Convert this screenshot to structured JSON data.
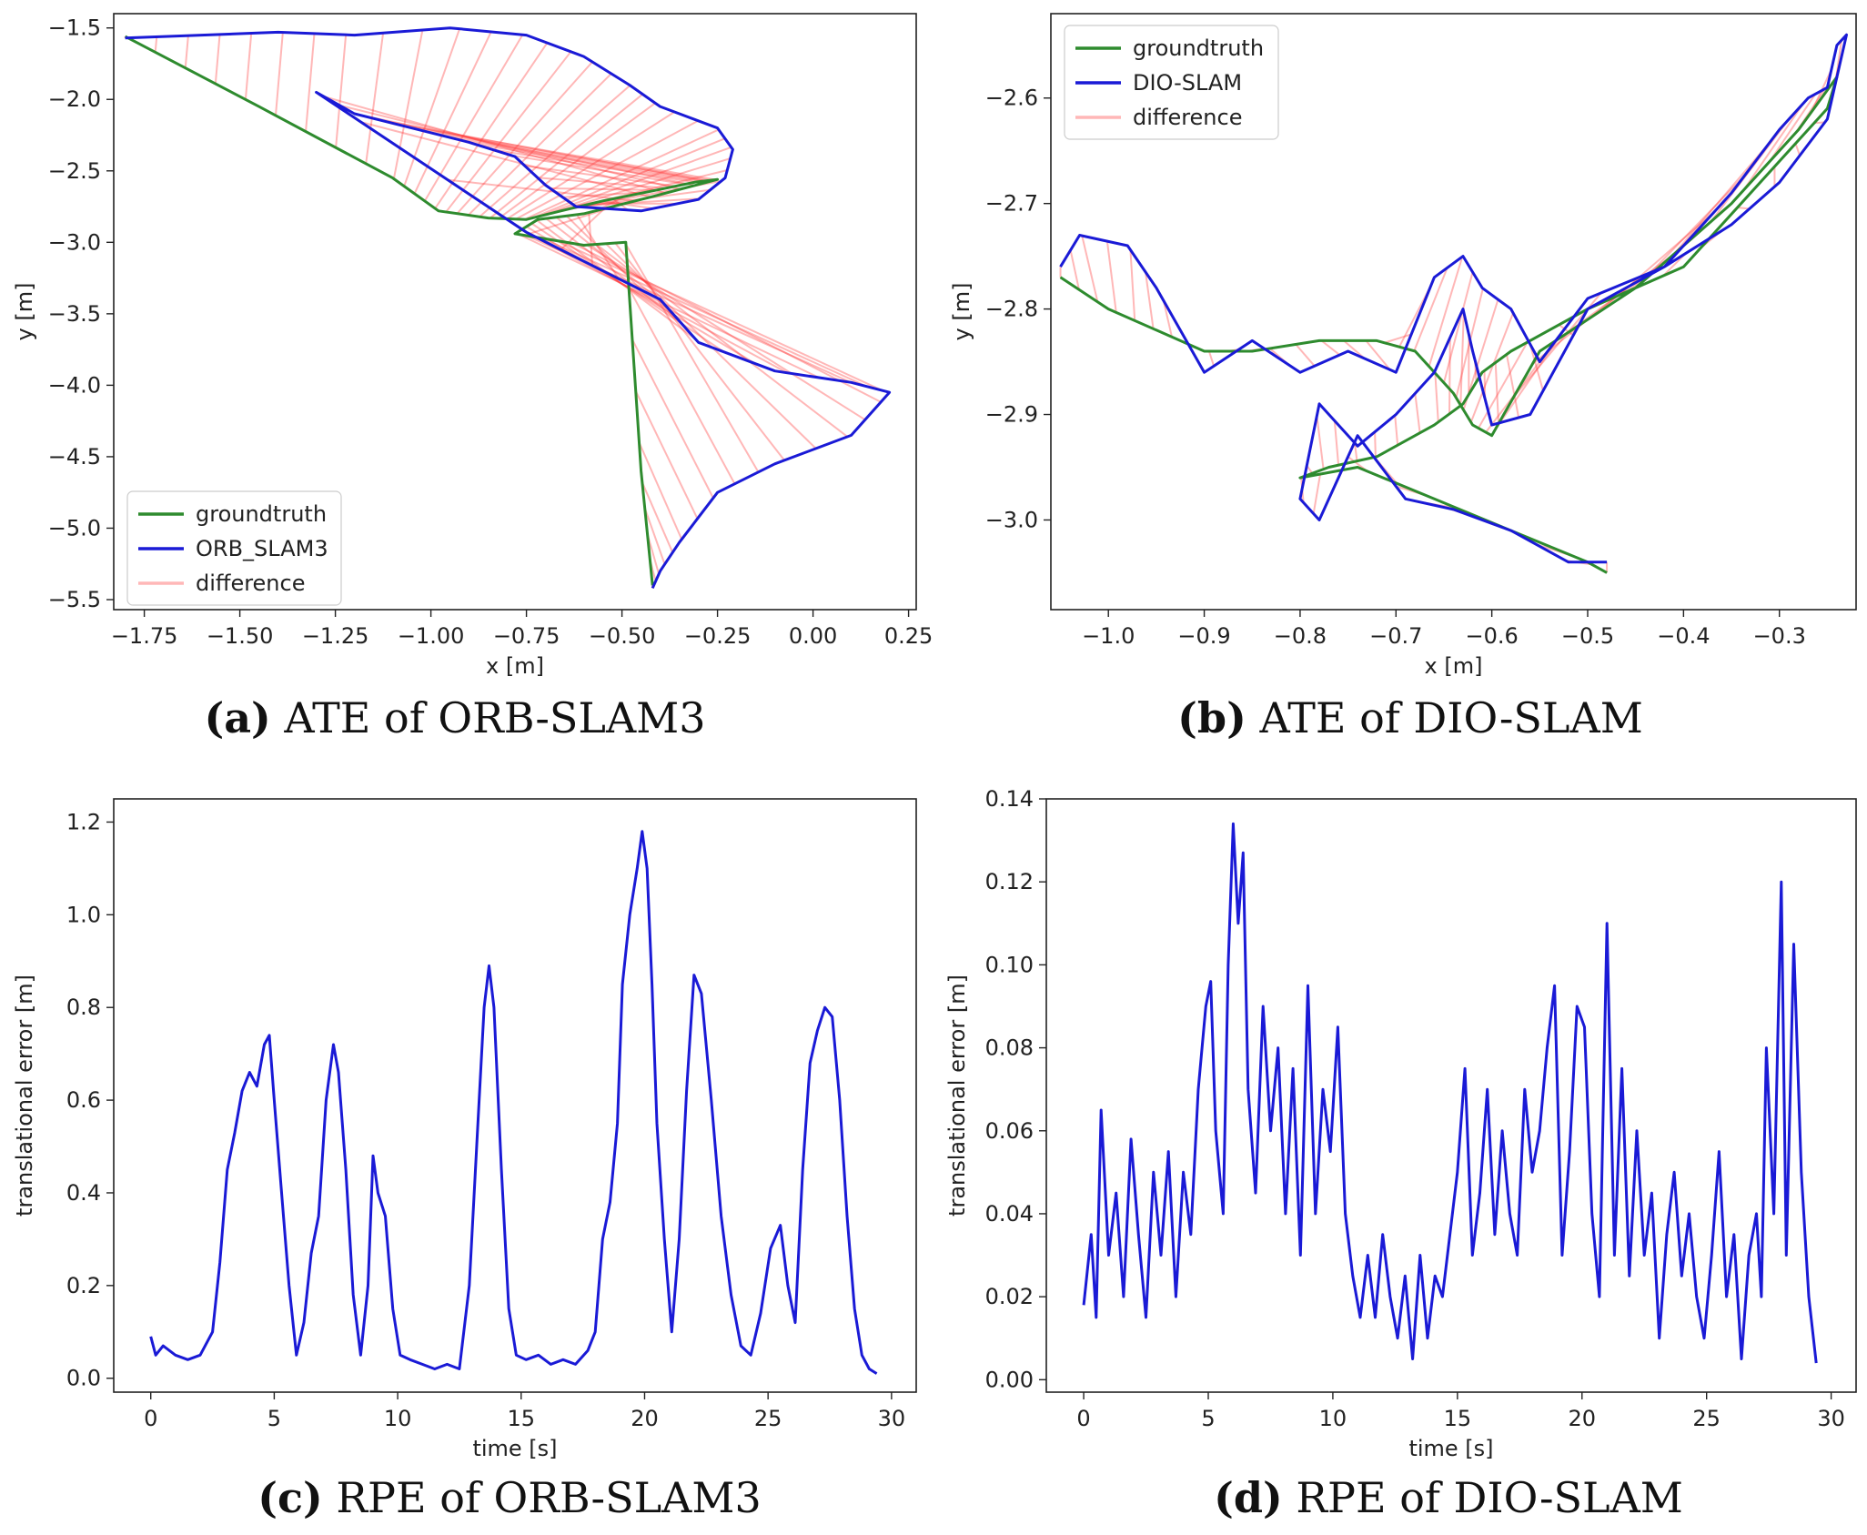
{
  "figure": {
    "panels": [
      {
        "tag": "(a)",
        "caption": "ATE of ORB-SLAM3"
      },
      {
        "tag": "(b)",
        "caption": "ATE of DIO-SLAM"
      },
      {
        "tag": "(c)",
        "caption": "RPE of ORB-SLAM3"
      },
      {
        "tag": "(d)",
        "caption": "RPE of DIO-SLAM"
      }
    ]
  },
  "chart_data": [
    {
      "type": "line",
      "title": "",
      "caption": "(a) ATE of ORB-SLAM3",
      "xlabel": "x [m]",
      "ylabel": "y [m]",
      "xlim": [
        -1.83,
        0.27
      ],
      "ylim": [
        -5.57,
        -1.4
      ],
      "xticks": [
        -1.75,
        -1.5,
        -1.25,
        -1.0,
        -0.75,
        -0.5,
        -0.25,
        0.0,
        0.25
      ],
      "xtick_labels": [
        "−1.75",
        "−1.50",
        "−1.25",
        "−1.00",
        "−0.75",
        "−0.50",
        "−0.25",
        "0.00",
        "0.25"
      ],
      "yticks": [
        -1.5,
        -2.0,
        -2.5,
        -3.0,
        -3.5,
        -4.0,
        -4.5,
        -5.0,
        -5.5
      ],
      "ytick_labels": [
        "−1.5",
        "−2.0",
        "−2.5",
        "−3.0",
        "−3.5",
        "−4.0",
        "−4.5",
        "−5.0",
        "−5.5"
      ],
      "legend": {
        "position": "lower-left",
        "entries": [
          "groundtruth",
          "ORB_SLAM3",
          "difference"
        ]
      },
      "series": [
        {
          "name": "groundtruth",
          "color": "#2e8b2e",
          "x": [
            -1.8,
            -1.45,
            -1.1,
            -0.98,
            -0.85,
            -0.75,
            -0.66,
            -0.55,
            -0.42,
            -0.31,
            -0.25,
            -0.42,
            -0.6,
            -0.72,
            -0.78,
            -0.6,
            -0.49,
            -0.45,
            -0.42
          ],
          "y": [
            -1.56,
            -2.05,
            -2.55,
            -2.78,
            -2.83,
            -2.84,
            -2.78,
            -2.71,
            -2.64,
            -2.58,
            -2.56,
            -2.68,
            -2.8,
            -2.84,
            -2.94,
            -3.02,
            -3.0,
            -4.6,
            -5.4
          ]
        },
        {
          "name": "ORB_SLAM3",
          "color": "#1a1ad6",
          "x": [
            -1.8,
            -1.6,
            -1.4,
            -1.2,
            -0.95,
            -0.75,
            -0.6,
            -0.48,
            -0.4,
            -0.25,
            -0.21,
            -0.23,
            -0.3,
            -0.45,
            -0.62,
            -0.7,
            -0.78,
            -0.9,
            -1.05,
            -1.2,
            -1.3,
            -0.75,
            -0.55,
            -0.4,
            -0.3,
            -0.1,
            0.1,
            0.2,
            0.1,
            -0.1,
            -0.25,
            -0.35,
            -0.4,
            -0.42
          ],
          "y": [
            -1.57,
            -1.55,
            -1.53,
            -1.55,
            -1.5,
            -1.55,
            -1.7,
            -1.9,
            -2.05,
            -2.2,
            -2.35,
            -2.55,
            -2.7,
            -2.78,
            -2.75,
            -2.6,
            -2.4,
            -2.3,
            -2.2,
            -2.1,
            -1.95,
            -2.93,
            -3.2,
            -3.4,
            -3.7,
            -3.9,
            -3.98,
            -4.05,
            -4.35,
            -4.55,
            -4.75,
            -5.1,
            -5.3,
            -5.42
          ]
        }
      ],
      "difference": {
        "name": "difference",
        "color": "#ff3030"
      }
    },
    {
      "type": "line",
      "title": "",
      "caption": "(b) ATE of DIO-SLAM",
      "xlabel": "x [m]",
      "ylabel": "y [m]",
      "xlim": [
        -1.06,
        -0.22
      ],
      "ylim": [
        -3.085,
        -2.52
      ],
      "xticks": [
        -1.0,
        -0.9,
        -0.8,
        -0.7,
        -0.6,
        -0.5,
        -0.4,
        -0.3,
        -0.2
      ],
      "xtick_labels": [
        "−1.0",
        "−0.9",
        "−0.8",
        "−0.7",
        "−0.6",
        "−0.5",
        "−0.4",
        "−0.3",
        "−0.2"
      ],
      "yticks": [
        -2.6,
        -2.7,
        -2.8,
        -2.9,
        -3.0
      ],
      "ytick_labels": [
        "−2.6",
        "−2.7",
        "−2.8",
        "−2.9",
        "−3.0"
      ],
      "legend": {
        "position": "top-left",
        "entries": [
          "groundtruth",
          "DIO-SLAM",
          "difference"
        ]
      },
      "series": [
        {
          "name": "groundtruth",
          "color": "#2e8b2e",
          "x": [
            -1.05,
            -1.0,
            -0.95,
            -0.9,
            -0.85,
            -0.78,
            -0.72,
            -0.68,
            -0.64,
            -0.62,
            -0.6,
            -0.55,
            -0.45,
            -0.35,
            -0.28,
            -0.24,
            -0.25,
            -0.3,
            -0.4,
            -0.5,
            -0.58,
            -0.61,
            -0.63,
            -0.66,
            -0.72,
            -0.77,
            -0.8,
            -0.74,
            -0.66,
            -0.58,
            -0.5,
            -0.48
          ],
          "y": [
            -2.77,
            -2.8,
            -2.82,
            -2.84,
            -2.84,
            -2.83,
            -2.83,
            -2.84,
            -2.88,
            -2.91,
            -2.92,
            -2.84,
            -2.78,
            -2.7,
            -2.63,
            -2.58,
            -2.61,
            -2.66,
            -2.76,
            -2.8,
            -2.84,
            -2.86,
            -2.89,
            -2.91,
            -2.94,
            -2.95,
            -2.96,
            -2.95,
            -2.98,
            -3.01,
            -3.04,
            -3.05
          ]
        },
        {
          "name": "DIO-SLAM",
          "color": "#1a1ad6",
          "x": [
            -1.05,
            -1.03,
            -0.98,
            -0.95,
            -0.9,
            -0.85,
            -0.8,
            -0.75,
            -0.7,
            -0.66,
            -0.63,
            -0.61,
            -0.58,
            -0.55,
            -0.5,
            -0.42,
            -0.35,
            -0.3,
            -0.27,
            -0.25,
            -0.24,
            -0.23,
            -0.25,
            -0.3,
            -0.35,
            -0.42,
            -0.5,
            -0.56,
            -0.6,
            -0.62,
            -0.63,
            -0.66,
            -0.7,
            -0.74,
            -0.78,
            -0.8,
            -0.78,
            -0.74,
            -0.69,
            -0.64,
            -0.58,
            -0.52,
            -0.48
          ],
          "y": [
            -2.76,
            -2.73,
            -2.74,
            -2.78,
            -2.86,
            -2.83,
            -2.86,
            -2.84,
            -2.86,
            -2.77,
            -2.75,
            -2.78,
            -2.8,
            -2.85,
            -2.79,
            -2.76,
            -2.69,
            -2.63,
            -2.6,
            -2.59,
            -2.55,
            -2.54,
            -2.62,
            -2.68,
            -2.72,
            -2.76,
            -2.8,
            -2.9,
            -2.91,
            -2.84,
            -2.8,
            -2.86,
            -2.9,
            -2.93,
            -2.89,
            -2.98,
            -3.0,
            -2.92,
            -2.98,
            -2.99,
            -3.01,
            -3.04,
            -3.04
          ]
        }
      ],
      "difference": {
        "name": "difference",
        "color": "#ff3030"
      }
    },
    {
      "type": "line",
      "title": "",
      "caption": "(c) RPE of ORB-SLAM3",
      "xlabel": "time [s]",
      "ylabel": "translational error [m]",
      "xlim": [
        -1.5,
        31
      ],
      "ylim": [
        -0.03,
        1.25
      ],
      "xticks": [
        0,
        5,
        10,
        15,
        20,
        25,
        30
      ],
      "xtick_labels": [
        "0",
        "5",
        "10",
        "15",
        "20",
        "25",
        "30"
      ],
      "yticks": [
        0.0,
        0.2,
        0.4,
        0.6,
        0.8,
        1.0,
        1.2
      ],
      "ytick_labels": [
        "0.0",
        "0.2",
        "0.4",
        "0.6",
        "0.8",
        "1.0",
        "1.2"
      ],
      "series": [
        {
          "name": "RPE",
          "color": "#1a1ad6",
          "x": [
            0.0,
            0.2,
            0.5,
            1.0,
            1.5,
            2.0,
            2.5,
            2.8,
            3.1,
            3.4,
            3.7,
            4.0,
            4.3,
            4.6,
            4.8,
            5.0,
            5.3,
            5.6,
            5.9,
            6.2,
            6.5,
            6.8,
            7.1,
            7.4,
            7.6,
            7.9,
            8.2,
            8.5,
            8.8,
            9.0,
            9.2,
            9.5,
            9.8,
            10.1,
            10.5,
            11.0,
            11.5,
            12.0,
            12.5,
            12.9,
            13.2,
            13.5,
            13.7,
            13.9,
            14.2,
            14.5,
            14.8,
            15.2,
            15.7,
            16.2,
            16.7,
            17.2,
            17.7,
            18.0,
            18.3,
            18.6,
            18.9,
            19.1,
            19.4,
            19.7,
            19.9,
            20.1,
            20.3,
            20.5,
            20.8,
            21.1,
            21.4,
            21.7,
            22.0,
            22.3,
            22.7,
            23.1,
            23.5,
            23.9,
            24.3,
            24.7,
            25.1,
            25.5,
            25.8,
            26.1,
            26.4,
            26.7,
            27.0,
            27.3,
            27.6,
            27.9,
            28.2,
            28.5,
            28.8,
            29.1,
            29.4
          ],
          "y": [
            0.09,
            0.05,
            0.07,
            0.05,
            0.04,
            0.05,
            0.1,
            0.25,
            0.45,
            0.53,
            0.62,
            0.66,
            0.63,
            0.72,
            0.74,
            0.6,
            0.4,
            0.2,
            0.05,
            0.12,
            0.27,
            0.35,
            0.6,
            0.72,
            0.66,
            0.45,
            0.18,
            0.05,
            0.2,
            0.48,
            0.4,
            0.35,
            0.15,
            0.05,
            0.04,
            0.03,
            0.02,
            0.03,
            0.02,
            0.2,
            0.5,
            0.8,
            0.89,
            0.8,
            0.45,
            0.15,
            0.05,
            0.04,
            0.05,
            0.03,
            0.04,
            0.03,
            0.06,
            0.1,
            0.3,
            0.38,
            0.55,
            0.85,
            1.0,
            1.1,
            1.18,
            1.1,
            0.85,
            0.55,
            0.3,
            0.1,
            0.3,
            0.62,
            0.87,
            0.83,
            0.6,
            0.35,
            0.18,
            0.07,
            0.05,
            0.14,
            0.28,
            0.33,
            0.2,
            0.12,
            0.45,
            0.68,
            0.75,
            0.8,
            0.78,
            0.6,
            0.35,
            0.15,
            0.05,
            0.02,
            0.01
          ]
        }
      ]
    },
    {
      "type": "line",
      "title": "",
      "caption": "(d) RPE of DIO-SLAM",
      "xlabel": "time [s]",
      "ylabel": "translational error [m]",
      "xlim": [
        -1.5,
        31
      ],
      "ylim": [
        -0.003,
        0.14
      ],
      "xticks": [
        0,
        5,
        10,
        15,
        20,
        25,
        30
      ],
      "xtick_labels": [
        "0",
        "5",
        "10",
        "15",
        "20",
        "25",
        "30"
      ],
      "yticks": [
        0.0,
        0.02,
        0.04,
        0.06,
        0.08,
        0.1,
        0.12,
        0.14
      ],
      "ytick_labels": [
        "0.00",
        "0.02",
        "0.04",
        "0.06",
        "0.08",
        "0.10",
        "0.12",
        "0.14"
      ],
      "series": [
        {
          "name": "RPE",
          "color": "#1a1ad6",
          "x": [
            0.0,
            0.3,
            0.5,
            0.7,
            1.0,
            1.3,
            1.6,
            1.9,
            2.2,
            2.5,
            2.8,
            3.1,
            3.4,
            3.7,
            4.0,
            4.3,
            4.6,
            4.9,
            5.1,
            5.3,
            5.6,
            5.8,
            6.0,
            6.2,
            6.4,
            6.6,
            6.9,
            7.2,
            7.5,
            7.8,
            8.1,
            8.4,
            8.7,
            9.0,
            9.3,
            9.6,
            9.9,
            10.2,
            10.5,
            10.8,
            11.1,
            11.4,
            11.7,
            12.0,
            12.3,
            12.6,
            12.9,
            13.2,
            13.5,
            13.8,
            14.1,
            14.4,
            14.7,
            15.0,
            15.3,
            15.6,
            15.9,
            16.2,
            16.5,
            16.8,
            17.1,
            17.4,
            17.7,
            18.0,
            18.3,
            18.6,
            18.9,
            19.2,
            19.5,
            19.8,
            20.1,
            20.4,
            20.7,
            21.0,
            21.3,
            21.6,
            21.9,
            22.2,
            22.5,
            22.8,
            23.1,
            23.4,
            23.7,
            24.0,
            24.3,
            24.6,
            24.9,
            25.2,
            25.5,
            25.8,
            26.1,
            26.4,
            26.7,
            27.0,
            27.2,
            27.4,
            27.7,
            28.0,
            28.2,
            28.5,
            28.8,
            29.1,
            29.4
          ],
          "y": [
            0.018,
            0.035,
            0.015,
            0.065,
            0.03,
            0.045,
            0.02,
            0.058,
            0.035,
            0.015,
            0.05,
            0.03,
            0.055,
            0.02,
            0.05,
            0.035,
            0.07,
            0.09,
            0.096,
            0.06,
            0.04,
            0.1,
            0.134,
            0.11,
            0.127,
            0.07,
            0.045,
            0.09,
            0.06,
            0.08,
            0.04,
            0.075,
            0.03,
            0.095,
            0.04,
            0.07,
            0.055,
            0.085,
            0.04,
            0.025,
            0.015,
            0.03,
            0.015,
            0.035,
            0.02,
            0.01,
            0.025,
            0.005,
            0.03,
            0.01,
            0.025,
            0.02,
            0.035,
            0.05,
            0.075,
            0.03,
            0.045,
            0.07,
            0.035,
            0.06,
            0.04,
            0.03,
            0.07,
            0.05,
            0.06,
            0.08,
            0.095,
            0.03,
            0.055,
            0.09,
            0.085,
            0.04,
            0.02,
            0.11,
            0.03,
            0.075,
            0.025,
            0.06,
            0.03,
            0.045,
            0.01,
            0.035,
            0.05,
            0.025,
            0.04,
            0.02,
            0.01,
            0.03,
            0.055,
            0.02,
            0.035,
            0.005,
            0.03,
            0.04,
            0.02,
            0.08,
            0.04,
            0.12,
            0.03,
            0.105,
            0.05,
            0.02,
            0.004
          ]
        }
      ]
    }
  ]
}
